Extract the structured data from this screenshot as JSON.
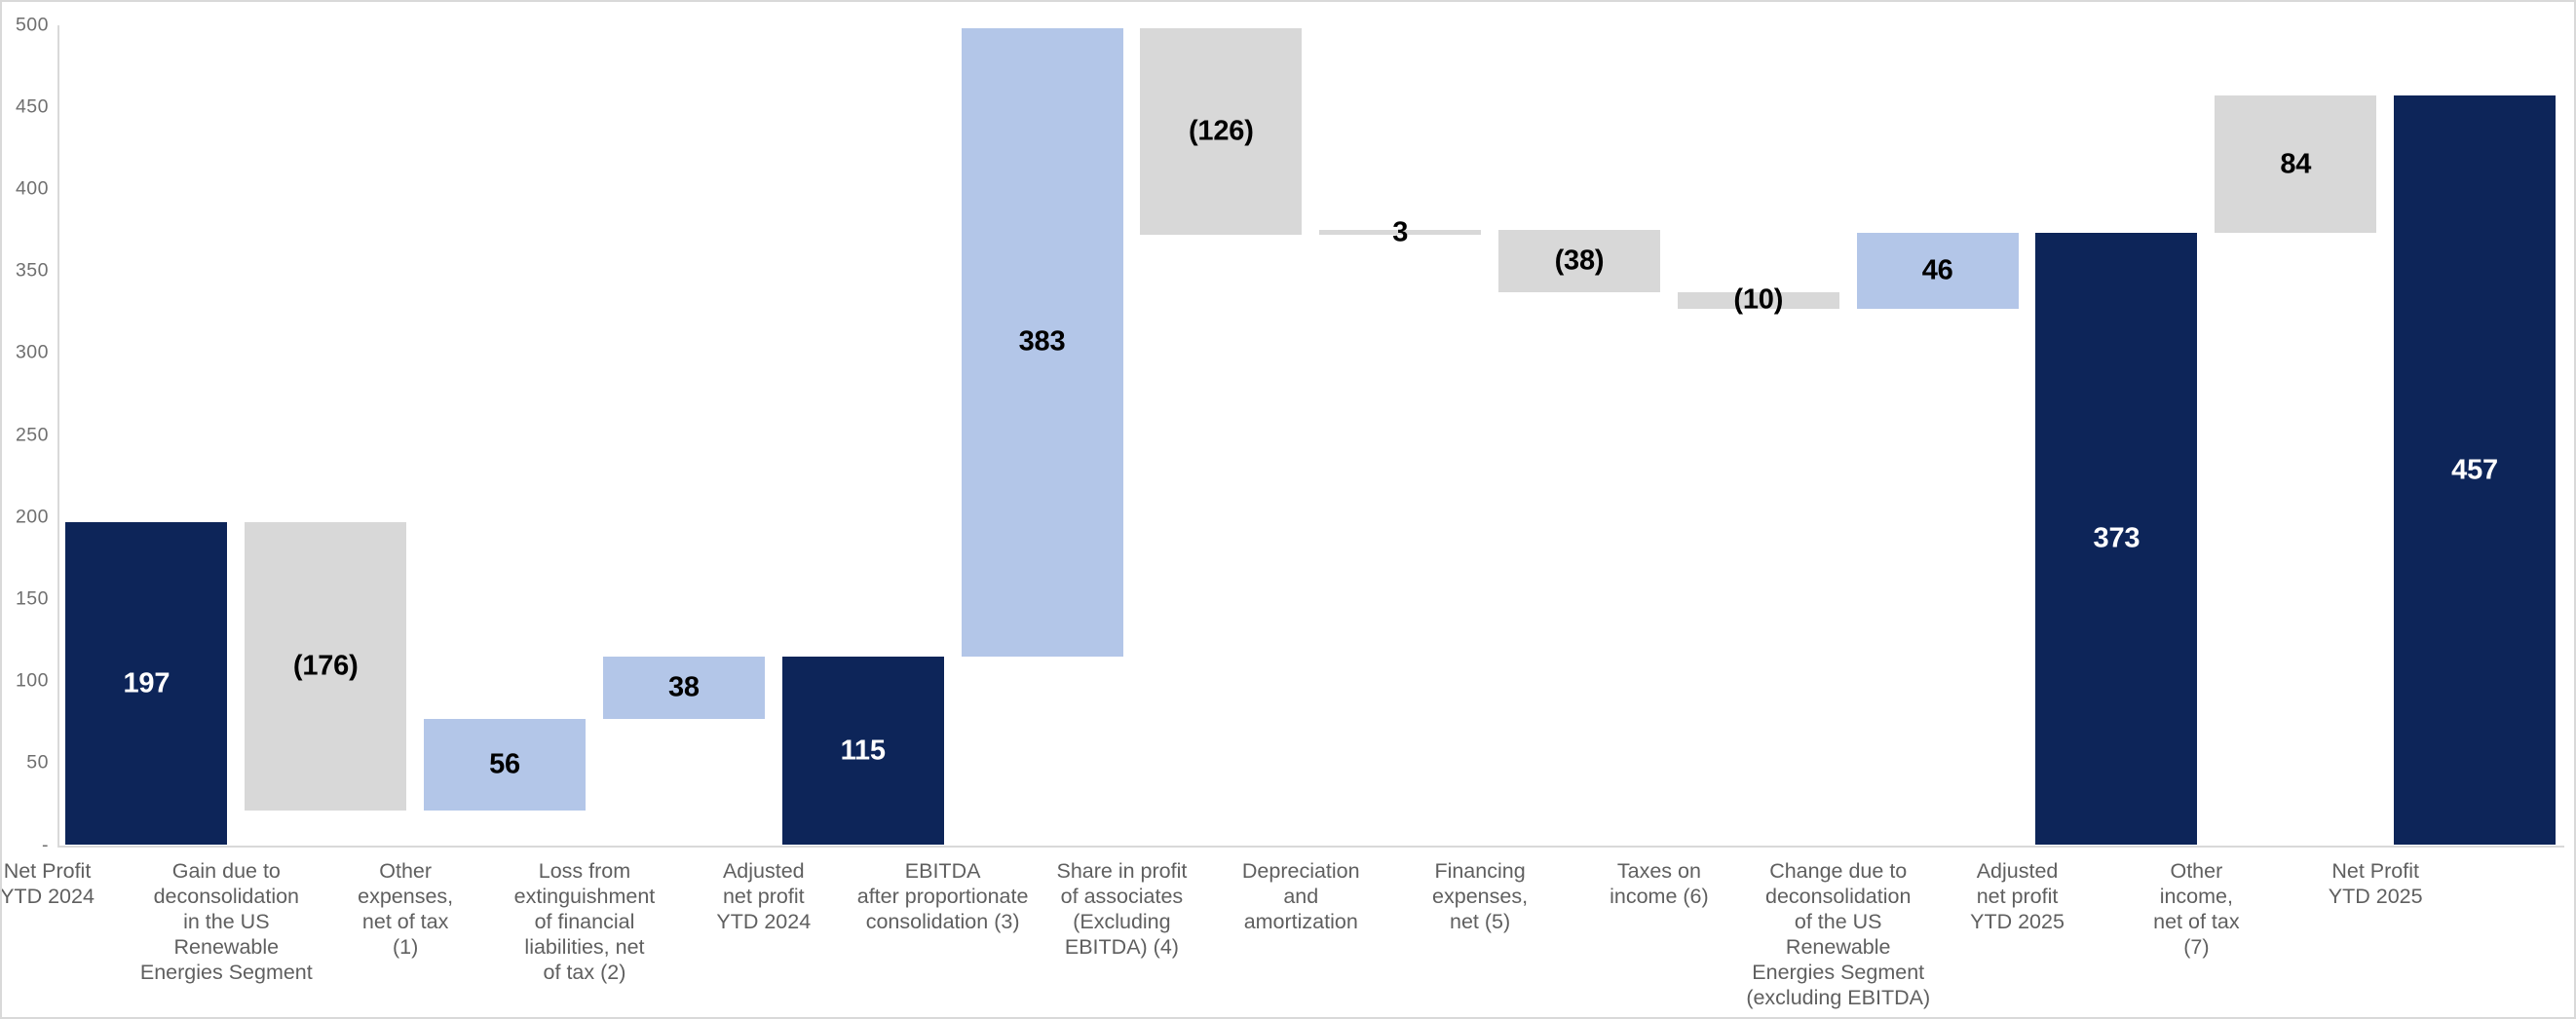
{
  "chart_data": {
    "type": "bar",
    "subtype": "waterfall",
    "title": "",
    "legend": false,
    "grid": false,
    "y_axis": {
      "min": 0,
      "max": 500,
      "step": 50,
      "ticks": [
        {
          "label": "500",
          "value": 500
        },
        {
          "label": "450",
          "value": 450
        },
        {
          "label": "400",
          "value": 400
        },
        {
          "label": "350",
          "value": 350
        },
        {
          "label": "300",
          "value": 300
        },
        {
          "label": "250",
          "value": 250
        },
        {
          "label": "200",
          "value": 200
        },
        {
          "label": "150",
          "value": 150
        },
        {
          "label": "100",
          "value": 100
        },
        {
          "label": "50",
          "value": 50
        },
        {
          "label": "-",
          "value": 0
        }
      ]
    },
    "bars": [
      {
        "category_lines": [
          "Net Profit",
          "YTD 2024"
        ],
        "value": 197,
        "label": "197",
        "start": 0,
        "end": 197,
        "kind": "total",
        "color": "navy",
        "label_color": "white"
      },
      {
        "category_lines": [
          "Gain due to",
          "deconsolidation",
          "in the US",
          "Renewable",
          "Energies Segment"
        ],
        "value": -176,
        "label": "(176)",
        "start": 197,
        "end": 21,
        "kind": "decrease",
        "color": "gray",
        "label_color": "black"
      },
      {
        "category_lines": [
          "Other",
          "expenses,",
          "net of tax",
          "(1)"
        ],
        "value": 56,
        "label": "56",
        "start": 21,
        "end": 77,
        "kind": "increase",
        "color": "light_blue",
        "label_color": "black"
      },
      {
        "category_lines": [
          "Loss from",
          "extinguishment",
          "of financial",
          "liabilities, net",
          "of tax (2)"
        ],
        "value": 38,
        "label": "38",
        "start": 77,
        "end": 115,
        "kind": "increase",
        "color": "light_blue",
        "label_color": "black"
      },
      {
        "category_lines": [
          "Adjusted",
          "net profit",
          "YTD 2024"
        ],
        "value": 115,
        "label": "115",
        "start": 0,
        "end": 115,
        "kind": "total",
        "color": "navy",
        "label_color": "white"
      },
      {
        "category_lines": [
          "EBITDA",
          "after proportionate",
          "consolidation (3)"
        ],
        "value": 383,
        "label": "383",
        "start": 115,
        "end": 498,
        "kind": "increase",
        "color": "light_blue",
        "label_color": "black"
      },
      {
        "category_lines": [
          "Share in profit",
          "of associates",
          "(Excluding",
          "EBITDA) (4)"
        ],
        "value": -126,
        "label": "(126)",
        "start": 498,
        "end": 372,
        "kind": "decrease",
        "color": "gray",
        "label_color": "black"
      },
      {
        "category_lines": [
          "Depreciation",
          "and",
          "amortization"
        ],
        "value": 3,
        "label": "3",
        "start": 372,
        "end": 375,
        "kind": "increase",
        "color": "gray",
        "label_color": "black"
      },
      {
        "category_lines": [
          "Financing",
          "expenses,",
          "net (5)"
        ],
        "value": -38,
        "label": "(38)",
        "start": 375,
        "end": 337,
        "kind": "decrease",
        "color": "gray",
        "label_color": "black"
      },
      {
        "category_lines": [
          "Taxes on",
          "income (6)"
        ],
        "value": -10,
        "label": "(10)",
        "start": 337,
        "end": 327,
        "kind": "decrease",
        "color": "gray",
        "label_color": "black"
      },
      {
        "category_lines": [
          "Change due to",
          "deconsolidation",
          "of the US",
          "Renewable",
          "Energies Segment",
          "(excluding EBITDA)"
        ],
        "value": 46,
        "label": "46",
        "start": 327,
        "end": 373,
        "kind": "increase",
        "color": "light_blue",
        "label_color": "black"
      },
      {
        "category_lines": [
          "Adjusted",
          "net profit",
          "YTD 2025"
        ],
        "value": 373,
        "label": "373",
        "start": 0,
        "end": 373,
        "kind": "total",
        "color": "navy",
        "label_color": "white"
      },
      {
        "category_lines": [
          "Other",
          "income,",
          "net of tax",
          "(7)"
        ],
        "value": 84,
        "label": "84",
        "start": 373,
        "end": 457,
        "kind": "increase",
        "color": "gray",
        "label_color": "black"
      },
      {
        "category_lines": [
          "Net Profit",
          "YTD 2025"
        ],
        "value": 457,
        "label": "457",
        "start": 0,
        "end": 457,
        "kind": "total",
        "color": "navy",
        "label_color": "white"
      }
    ]
  },
  "colors": {
    "navy": "#0d2559",
    "light_blue": "#b3c6e8",
    "gray": "#d8d8d8",
    "axis_line": "#d9d9d9",
    "tick_text": "#6f6f6f",
    "category_text": "#5f5f5f",
    "label_white": "#ffffff",
    "label_black": "#000000",
    "background": "#ffffff",
    "border": "#d9d9d9"
  }
}
